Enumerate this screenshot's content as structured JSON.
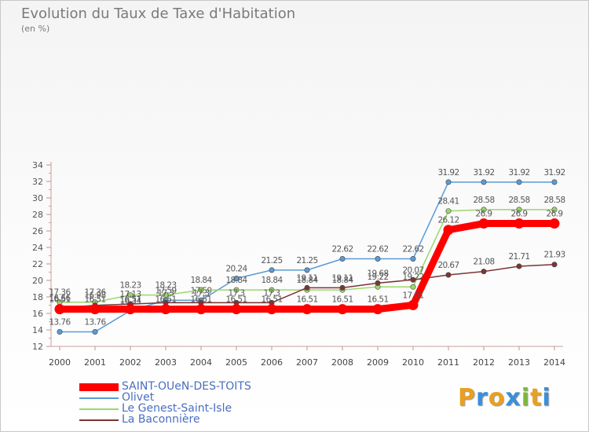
{
  "chart_data": {
    "type": "line",
    "title": "Evolution du Taux de Taxe d'Habitation",
    "subtitle": "(en %)",
    "x": [
      "2000",
      "2001",
      "2002",
      "2003",
      "2004",
      "2005",
      "2006",
      "2007",
      "2008",
      "2009",
      "2010",
      "2011",
      "2012",
      "2013",
      "2014"
    ],
    "ylim": [
      12,
      34
    ],
    "yticks": [
      12,
      14,
      16,
      18,
      20,
      22,
      24,
      26,
      28,
      30,
      32,
      34
    ],
    "grid": false,
    "legend_position": "bottom-left",
    "series": [
      {
        "name": "Olivet",
        "color": "#5b9bd5",
        "values": [
          13.76,
          13.76,
          16.34,
          17.59,
          17.59,
          20.24,
          21.25,
          21.25,
          22.62,
          22.62,
          22.62,
          31.92,
          31.92,
          31.92,
          31.92
        ],
        "labels": [
          "13.76",
          "13.76",
          "16.34",
          "17.59",
          "17.59",
          "20.24",
          "21.25",
          "21.25",
          "22.62",
          "22.62",
          "22.62",
          "31.92",
          "31.92",
          "31.92",
          "31.92"
        ]
      },
      {
        "name": "Le Genest-Saint-Isle",
        "color": "#9ad86a",
        "values": [
          17.36,
          17.36,
          18.23,
          18.23,
          18.84,
          18.84,
          18.84,
          18.84,
          18.84,
          19.22,
          19.22,
          28.41,
          28.58,
          28.58,
          28.58
        ],
        "labels": [
          "17.36",
          "17.36",
          "18.23",
          "18.23",
          "18.84",
          "18.84",
          "18.84",
          "18.84",
          "18.84",
          "19.22",
          "19.22",
          "28.41",
          "28.58",
          "28.58",
          "28.58"
        ]
      },
      {
        "name": "La Baconnière",
        "color": "#7b3535",
        "values": [
          16.66,
          16.98,
          17.13,
          17.3,
          17.3,
          17.3,
          17.3,
          19.11,
          19.11,
          19.68,
          20.07,
          20.67,
          21.08,
          21.71,
          21.93
        ],
        "labels": [
          "16.66",
          "16.98",
          "17.13",
          "17.3",
          "17.3",
          "17.3",
          "17.3",
          "19.11",
          "19.11",
          "19.68",
          "20.07",
          "20.67",
          "21.08",
          "21.71",
          "21.93"
        ]
      },
      {
        "name": "SAINT-OUeN-DES-TOITS",
        "color": "#ff0000",
        "values": [
          16.51,
          16.51,
          16.51,
          16.51,
          16.51,
          16.51,
          16.51,
          16.51,
          16.51,
          16.51,
          17.01,
          26.12,
          26.9,
          26.9,
          26.9
        ],
        "labels": [
          "16.51",
          "16.51",
          "16.51",
          "16.51",
          "16.51",
          "16.51",
          "16.51",
          "16.51",
          "16.51",
          "16.51",
          "17.01",
          "26.12",
          "26.9",
          "26.9",
          "26.9"
        ]
      }
    ],
    "legend_order": [
      "SAINT-OUeN-DES-TOITS",
      "Olivet",
      "Le Genest-Saint-Isle",
      "La Baconnière"
    ]
  },
  "brand": {
    "text": "Proxiti",
    "letter_colors": [
      "#e8a020",
      "#3a8fd8",
      "#e8a020",
      "#3a8fd8",
      "#7ab83a",
      "#e8a020",
      "#3a8fd8"
    ]
  }
}
